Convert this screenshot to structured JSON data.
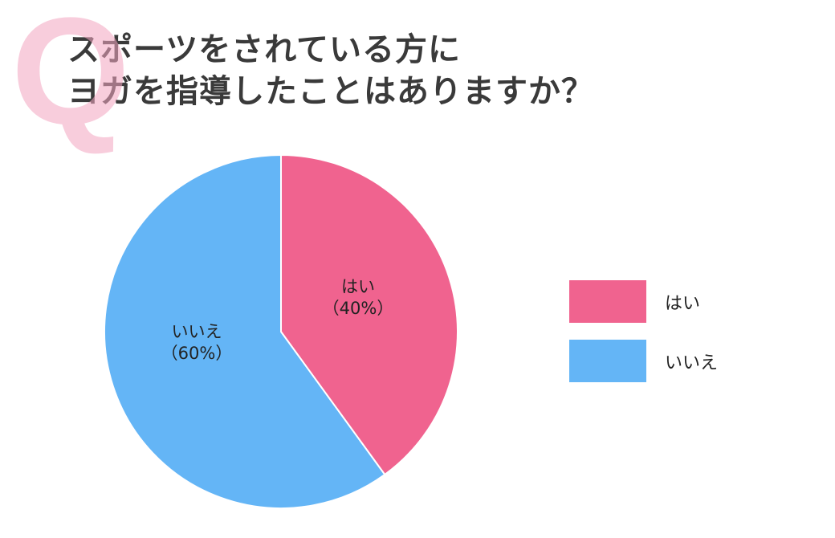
{
  "header": {
    "q_mark": "Q",
    "title_line1": "スポーツをされている方に",
    "title_line2": "ヨガを指導したことはありますか？"
  },
  "colors": {
    "yes": "#f0638f",
    "no": "#64b5f6",
    "q_mark": "#f4a6c1",
    "title": "#3a3a3a"
  },
  "chart_data": {
    "type": "pie",
    "title": "スポーツをされている方にヨガを指導したことはありますか？",
    "categories": [
      "はい",
      "いいえ"
    ],
    "values": [
      40,
      60
    ],
    "unit": "%",
    "colors": [
      "#f0638f",
      "#64b5f6"
    ],
    "start_angle": "12 o'clock, clockwise",
    "legend_position": "right"
  },
  "slices": [
    {
      "label": "はい",
      "pct_label": "（40%）"
    },
    {
      "label": "いいえ",
      "pct_label": "（60%）"
    }
  ],
  "legend": [
    {
      "label": "はい"
    },
    {
      "label": "いいえ"
    }
  ]
}
